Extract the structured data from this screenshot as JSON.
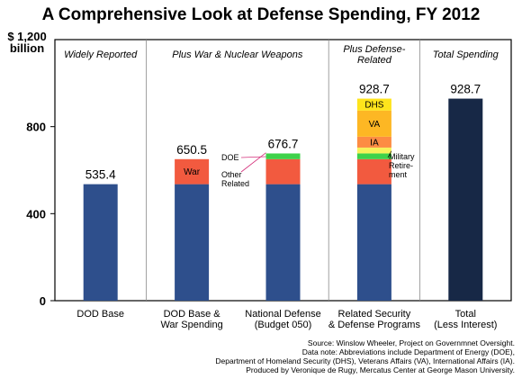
{
  "chart_data": {
    "type": "bar",
    "stacked": true,
    "title": "A Comprehensive Look at Defense Spending,  FY 2012",
    "ylabel": [
      "$ 1,200",
      "billion"
    ],
    "ylim": [
      0,
      1200
    ],
    "yticks": [
      0,
      400,
      800
    ],
    "grid": false,
    "sections": [
      "Widely Reported",
      "Plus War & Nuclear Weapons",
      [
        "Plus Defense-",
        "Related"
      ],
      "Total Spending"
    ],
    "categories": [
      [
        "DOD Base"
      ],
      [
        "DOD Base &",
        "War Spending"
      ],
      [
        "National Defense",
        "(Budget 050)"
      ],
      [
        "Related Security",
        "& Defense Programs"
      ],
      [
        "Total",
        "(Less Interest)"
      ]
    ],
    "totals": [
      "535.4",
      "650.5",
      "676.7",
      "928.7",
      "928.7"
    ],
    "stacks": [
      [
        {
          "value": 535.4,
          "color": "#2e4f8c"
        }
      ],
      [
        {
          "value": 535.4,
          "color": "#2e4f8c"
        },
        {
          "value": 115.1,
          "color": "#f25a3f",
          "label": "War"
        }
      ],
      [
        {
          "value": 535.4,
          "color": "#2e4f8c"
        },
        {
          "value": 115.1,
          "color": "#f25a3f"
        },
        {
          "value": 26.2,
          "color": "#3ed24a"
        }
      ],
      [
        {
          "value": 535.4,
          "color": "#2e4f8c"
        },
        {
          "value": 115.1,
          "color": "#f25a3f"
        },
        {
          "value": 26.2,
          "color": "#3ed24a"
        },
        {
          "value": 27.0,
          "color": "#f7f25a"
        },
        {
          "value": 50.0,
          "color": "#fd8c43",
          "label": "IA"
        },
        {
          "value": 120.0,
          "color": "#fdb724",
          "label": "VA"
        },
        {
          "value": 55.0,
          "color": "#fee41c",
          "label": "DHS"
        }
      ],
      [
        {
          "value": 928.7,
          "color": "#172846"
        }
      ]
    ],
    "annotations": {
      "doe": "DOE",
      "other": [
        "Other",
        "Related"
      ],
      "military": [
        "Military",
        "Retire-",
        "ment"
      ]
    }
  },
  "source_notes": [
    "Source: Winslow Wheeler, Project on Governmnet Oversight.",
    "Data note: Abbreviations include Department of Energy (DOE),",
    "Department of Homeland Security (DHS), Veterans Affairs (VA), International Affairs (IA).",
    "Produced by Veronique de Rugy, Mercatus Center at George Mason University."
  ]
}
